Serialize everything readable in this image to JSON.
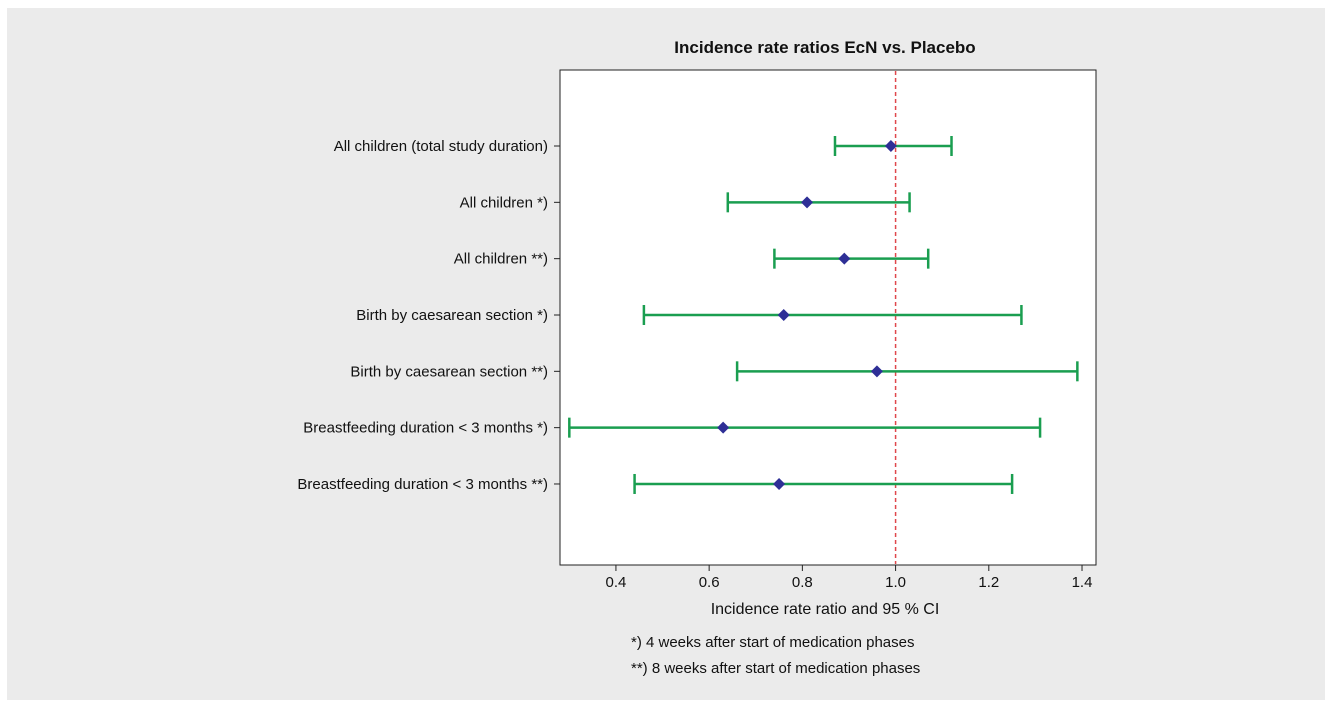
{
  "chart_data": {
    "type": "forest",
    "title": "Incidence rate ratios EcN vs. Placebo",
    "xlabel": "Incidence rate ratio and 95 % CI",
    "ylabel": "",
    "xlim": [
      0.28,
      1.43
    ],
    "xticks": [
      0.4,
      0.6,
      0.8,
      1.0,
      1.2,
      1.4
    ],
    "xtick_labels": [
      "0.4",
      "0.6",
      "0.8",
      "1.0",
      "1.2",
      "1.4"
    ],
    "reference_line": 1.0,
    "categories": [
      "All children (total study duration)",
      "All children *)",
      "All children **)",
      "Birth by caesarean section *)",
      "Birth by caesarean section **)",
      "Breastfeeding duration < 3 months *)",
      "Breastfeeding duration < 3 months **)"
    ],
    "estimate": [
      0.99,
      0.81,
      0.89,
      0.76,
      0.96,
      0.63,
      0.75
    ],
    "ci_low": [
      0.87,
      0.64,
      0.74,
      0.46,
      0.66,
      0.3,
      0.44
    ],
    "ci_high": [
      1.12,
      1.03,
      1.07,
      1.27,
      1.39,
      1.31,
      1.25
    ],
    "grid": false,
    "legend": "none",
    "colors": {
      "ci": "#1a9e50",
      "point": "#2e2f96",
      "reference": "#e0474c",
      "panel_bg": "#ebebeb",
      "plot_bg": "#ffffff"
    }
  },
  "footnotes": {
    "line1": "*) 4 weeks after start of medication phases",
    "line2": "**) 8 weeks after start of medication phases"
  }
}
